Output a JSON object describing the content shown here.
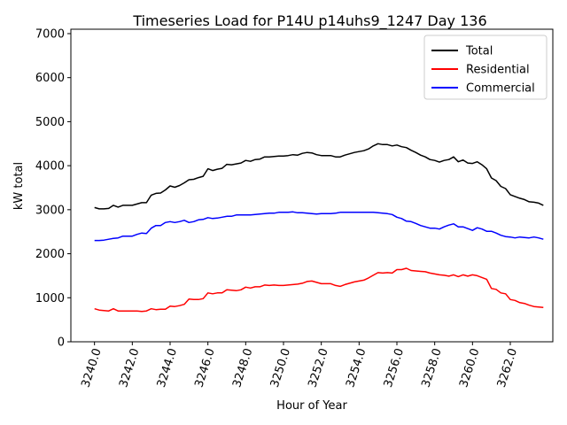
{
  "chart_data": {
    "type": "line",
    "title": "Timeseries Load for P14U p14uhs9_1247  Day 136",
    "xlabel": "Hour of Year",
    "ylabel": "kW total",
    "xlim": [
      3238.75,
      3264.25
    ],
    "ylim": [
      0,
      7100
    ],
    "xticks": [
      3240,
      3242,
      3244,
      3246,
      3248,
      3250,
      3252,
      3254,
      3256,
      3258,
      3260,
      3262
    ],
    "xtick_labels": [
      "3240.0",
      "3242.0",
      "3244.0",
      "3246.0",
      "3248.0",
      "3250.0",
      "3252.0",
      "3254.0",
      "3256.0",
      "3258.0",
      "3260.0",
      "3262.0"
    ],
    "yticks": [
      0,
      1000,
      2000,
      3000,
      4000,
      5000,
      6000,
      7000
    ],
    "ytick_labels": [
      "0",
      "1000",
      "2000",
      "3000",
      "4000",
      "5000",
      "6000",
      "7000"
    ],
    "legend_position": "top-right",
    "x": [
      3240.0,
      3240.25,
      3240.5,
      3240.75,
      3241.0,
      3241.25,
      3241.5,
      3241.75,
      3242.0,
      3242.25,
      3242.5,
      3242.75,
      3243.0,
      3243.25,
      3243.5,
      3243.75,
      3244.0,
      3244.25,
      3244.5,
      3244.75,
      3245.0,
      3245.25,
      3245.5,
      3245.75,
      3246.0,
      3246.25,
      3246.5,
      3246.75,
      3247.0,
      3247.25,
      3247.5,
      3247.75,
      3248.0,
      3248.25,
      3248.5,
      3248.75,
      3249.0,
      3249.25,
      3249.5,
      3249.75,
      3250.0,
      3250.25,
      3250.5,
      3250.75,
      3251.0,
      3251.25,
      3251.5,
      3251.75,
      3252.0,
      3252.25,
      3252.5,
      3252.75,
      3253.0,
      3253.25,
      3253.5,
      3253.75,
      3254.0,
      3254.25,
      3254.5,
      3254.75,
      3255.0,
      3255.25,
      3255.5,
      3255.75,
      3256.0,
      3256.25,
      3256.5,
      3256.75,
      3257.0,
      3257.25,
      3257.5,
      3257.75,
      3258.0,
      3258.25,
      3258.5,
      3258.75,
      3259.0,
      3259.25,
      3259.5,
      3259.75,
      3260.0,
      3260.25,
      3260.5,
      3260.75,
      3261.0,
      3261.25,
      3261.5,
      3261.75,
      3262.0,
      3262.25,
      3262.5,
      3262.75,
      3263.0,
      3263.25,
      3263.5,
      3263.75
    ],
    "series": [
      {
        "name": "Total",
        "color": "#000000",
        "values": [
          3050,
          3020,
          3020,
          3030,
          3100,
          3060,
          3100,
          3100,
          3100,
          3130,
          3160,
          3160,
          3330,
          3370,
          3380,
          3450,
          3540,
          3510,
          3550,
          3610,
          3680,
          3690,
          3730,
          3760,
          3930,
          3890,
          3920,
          3940,
          4030,
          4020,
          4040,
          4060,
          4120,
          4100,
          4140,
          4150,
          4200,
          4200,
          4210,
          4220,
          4220,
          4230,
          4250,
          4240,
          4280,
          4300,
          4290,
          4250,
          4230,
          4230,
          4230,
          4200,
          4200,
          4240,
          4270,
          4300,
          4320,
          4340,
          4380,
          4450,
          4500,
          4480,
          4480,
          4450,
          4470,
          4430,
          4410,
          4350,
          4300,
          4240,
          4200,
          4140,
          4120,
          4080,
          4120,
          4140,
          4200,
          4090,
          4130,
          4060,
          4050,
          4090,
          4020,
          3930,
          3720,
          3660,
          3530,
          3480,
          3340,
          3300,
          3260,
          3230,
          3180,
          3170,
          3150,
          3100
        ]
      },
      {
        "name": "Residential",
        "color": "#ff0000",
        "values": [
          750,
          720,
          710,
          700,
          750,
          700,
          700,
          700,
          700,
          700,
          690,
          700,
          750,
          730,
          740,
          740,
          810,
          800,
          820,
          850,
          970,
          960,
          960,
          980,
          1110,
          1090,
          1110,
          1110,
          1180,
          1170,
          1160,
          1180,
          1240,
          1220,
          1250,
          1250,
          1290,
          1280,
          1290,
          1280,
          1280,
          1290,
          1300,
          1310,
          1330,
          1370,
          1380,
          1350,
          1320,
          1320,
          1320,
          1280,
          1260,
          1300,
          1330,
          1360,
          1380,
          1400,
          1450,
          1510,
          1570,
          1560,
          1570,
          1560,
          1640,
          1640,
          1670,
          1620,
          1610,
          1600,
          1590,
          1560,
          1540,
          1520,
          1510,
          1490,
          1520,
          1480,
          1520,
          1490,
          1520,
          1500,
          1460,
          1420,
          1210,
          1190,
          1110,
          1090,
          960,
          940,
          890,
          870,
          830,
          800,
          790,
          780
        ]
      },
      {
        "name": "Commercial",
        "color": "#0000ff",
        "values": [
          2300,
          2300,
          2310,
          2330,
          2350,
          2360,
          2400,
          2400,
          2400,
          2440,
          2470,
          2460,
          2580,
          2640,
          2640,
          2710,
          2730,
          2710,
          2730,
          2760,
          2710,
          2730,
          2770,
          2780,
          2820,
          2800,
          2810,
          2830,
          2850,
          2850,
          2880,
          2880,
          2880,
          2880,
          2890,
          2900,
          2910,
          2920,
          2920,
          2940,
          2940,
          2940,
          2950,
          2930,
          2930,
          2920,
          2910,
          2900,
          2910,
          2910,
          2910,
          2920,
          2940,
          2940,
          2940,
          2940,
          2940,
          2940,
          2940,
          2940,
          2930,
          2920,
          2910,
          2890,
          2830,
          2800,
          2740,
          2730,
          2690,
          2640,
          2610,
          2580,
          2580,
          2560,
          2610,
          2650,
          2680,
          2610,
          2610,
          2570,
          2530,
          2590,
          2560,
          2510,
          2510,
          2470,
          2420,
          2390,
          2380,
          2360,
          2380,
          2370,
          2360,
          2380,
          2360,
          2330
        ]
      }
    ]
  }
}
